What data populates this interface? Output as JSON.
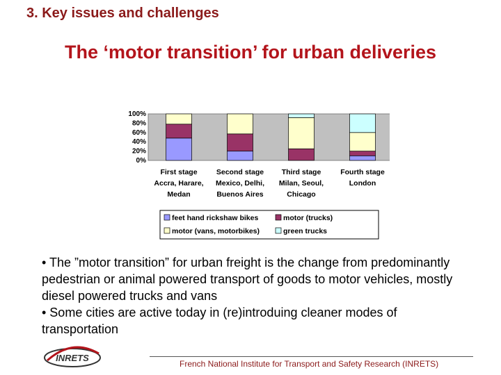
{
  "slide": {
    "section_heading": "3. Key issues and challenges",
    "title": "The ‘motor transition’ for urban deliveries",
    "bullets": [
      "• The ”motor transition” for urban freight is the change from predominantly pedestrian or animal powered transport of goods to motor vehicles, mostly diesel powered trucks and vans",
      "• Some cities are active today in (re)introduing cleaner modes of transportation"
    ],
    "footer": "French National Institute for Transport and Safety Research (INRETS)",
    "logo_text": "INRETS"
  },
  "chart_data": {
    "type": "bar",
    "stacked": true,
    "normalized": true,
    "categories": [
      [
        "First stage",
        "Accra, Harare,",
        "Medan"
      ],
      [
        "Second stage",
        "Mexico, Delhi,",
        "Buenos Aires"
      ],
      [
        "Third stage",
        "Milan, Seoul,",
        "Chicago"
      ],
      [
        "Fourth stage",
        "London"
      ]
    ],
    "series": [
      {
        "name": "feet hand rickshaw bikes",
        "color": "#9999ff",
        "values": [
          48,
          20,
          0,
          10
        ]
      },
      {
        "name": "motor (trucks)",
        "color": "#993366",
        "values": [
          30,
          37,
          25,
          10
        ]
      },
      {
        "name": "motor (vans, motorbikes)",
        "color": "#ffffcc",
        "values": [
          22,
          43,
          67,
          40
        ]
      },
      {
        "name": "green trucks",
        "color": "#ccffff",
        "values": [
          0,
          0,
          8,
          40
        ]
      }
    ],
    "yticks": [
      "0%",
      "20%",
      "40%",
      "60%",
      "80%",
      "100%"
    ],
    "ylim": [
      0,
      100
    ],
    "plot_background": "#c0c0c0",
    "legend_position": "bottom"
  }
}
